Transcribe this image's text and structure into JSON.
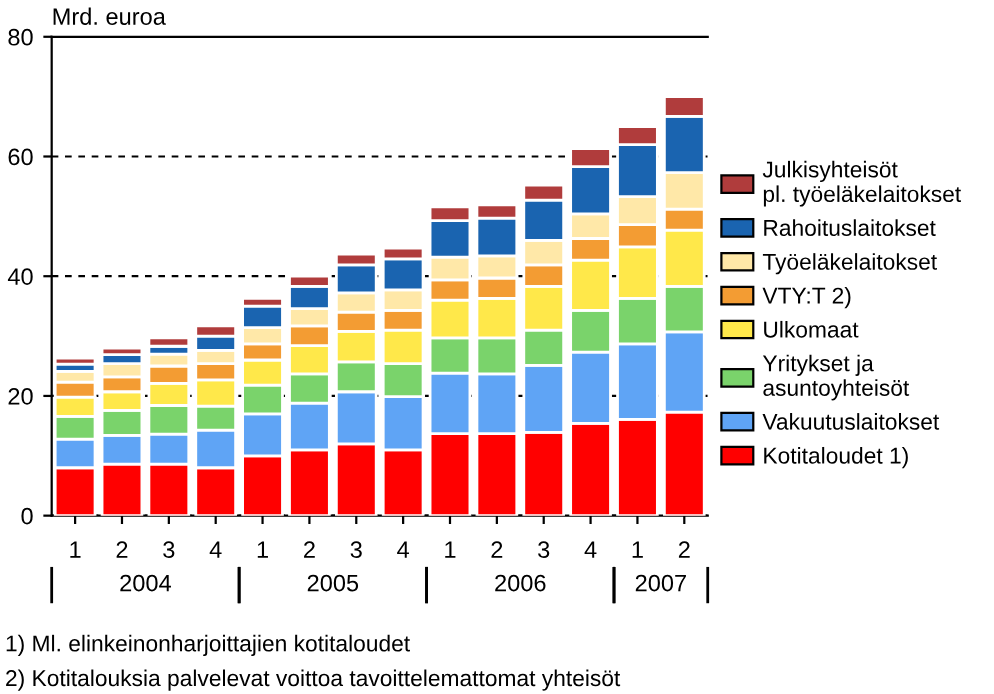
{
  "chart_data": {
    "type": "bar",
    "stacked": true,
    "ylabel": "Mrd. euroa",
    "categories": [
      "1",
      "2",
      "3",
      "4",
      "1",
      "2",
      "3",
      "4",
      "1",
      "2",
      "3",
      "4",
      "1",
      "2"
    ],
    "ylim": [
      0,
      80
    ],
    "yticks": [
      0,
      20,
      40,
      60,
      80
    ],
    "grid": "y",
    "legend": "right",
    "series": [
      {
        "name": "Kotitaloudet 1)",
        "color": "#ff0000",
        "values": [
          8.0,
          8.6,
          8.6,
          8.0,
          10.0,
          11.0,
          12.0,
          11.0,
          13.7,
          13.7,
          13.9,
          15.4,
          16.1,
          17.3
        ]
      },
      {
        "name": "Vakuutuslaitokset",
        "color": "#5fa4f5",
        "values": [
          4.8,
          4.8,
          5.0,
          6.3,
          7.0,
          7.8,
          8.7,
          8.9,
          10.1,
          10.0,
          11.2,
          11.9,
          12.6,
          13.4
        ]
      },
      {
        "name": "Yritykset ja\nasuntoyhteisöt",
        "color": "#7ad36b",
        "values": [
          3.8,
          4.2,
          4.8,
          4.0,
          4.8,
          4.9,
          5.0,
          5.5,
          5.9,
          6.0,
          5.9,
          7.0,
          7.6,
          7.6
        ]
      },
      {
        "name": "Ulkomaat",
        "color": "#ffe84a",
        "values": [
          3.2,
          3.1,
          3.7,
          4.4,
          4.2,
          4.7,
          5.1,
          5.6,
          6.3,
          6.6,
          7.3,
          8.4,
          8.6,
          9.4
        ]
      },
      {
        "name": "VTY:T 2)",
        "color": "#f39c33",
        "values": [
          2.5,
          2.5,
          2.9,
          2.7,
          2.7,
          3.3,
          3.2,
          3.3,
          3.4,
          3.4,
          3.6,
          3.6,
          3.7,
          3.5
        ]
      },
      {
        "name": "Työeläkelaitokset",
        "color": "#ffe8a8",
        "values": [
          1.8,
          2.2,
          2.0,
          2.2,
          2.7,
          2.9,
          3.2,
          3.4,
          3.8,
          3.7,
          4.1,
          4.1,
          4.7,
          6.1
        ]
      },
      {
        "name": "Rahoituslaitokset",
        "color": "#1a64b0",
        "values": [
          1.2,
          1.5,
          1.3,
          2.4,
          3.6,
          3.7,
          4.7,
          5.2,
          6.1,
          6.3,
          6.7,
          7.9,
          8.7,
          9.4
        ]
      },
      {
        "name": "Julkisyhteisöt\npl. työeläkelaitokset",
        "color": "#b03c3c",
        "values": [
          1.0,
          1.1,
          1.4,
          1.7,
          1.3,
          1.7,
          1.8,
          1.8,
          2.3,
          2.2,
          2.5,
          3.0,
          3.0,
          3.3
        ]
      }
    ],
    "annotations": [
      "2004",
      "2005",
      "2006",
      "2007",
      "1) Ml. elinkeinonharjoittajien kotitaloudet",
      "2) Kotitalouksia palvelevat voittoa tavoittelemattomat yhteisöt"
    ]
  }
}
